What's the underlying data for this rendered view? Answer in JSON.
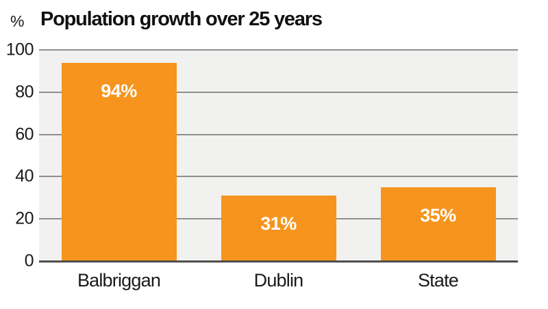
{
  "chart_data": {
    "type": "bar",
    "title": "Population growth over 25 years",
    "unit_label": "%",
    "categories": [
      "Balbriggan",
      "Dublin",
      "State"
    ],
    "values": [
      94,
      31,
      35
    ],
    "value_labels": [
      "94%",
      "31%",
      "35%"
    ],
    "series": [
      {
        "name": "Population growth",
        "values": [
          94,
          31,
          35
        ]
      }
    ],
    "yticks": [
      0,
      20,
      40,
      60,
      80,
      100
    ],
    "ylim": [
      0,
      100
    ],
    "grid": "horizontal",
    "legend": "none",
    "bar_color": "#f7941d",
    "plot_background": "#f1f1ef",
    "gridline_color": "#8f8f8f",
    "baseline_color": "#4d4d4d",
    "value_label_color": "#ffffff",
    "text_color": "#1a1a1a"
  }
}
